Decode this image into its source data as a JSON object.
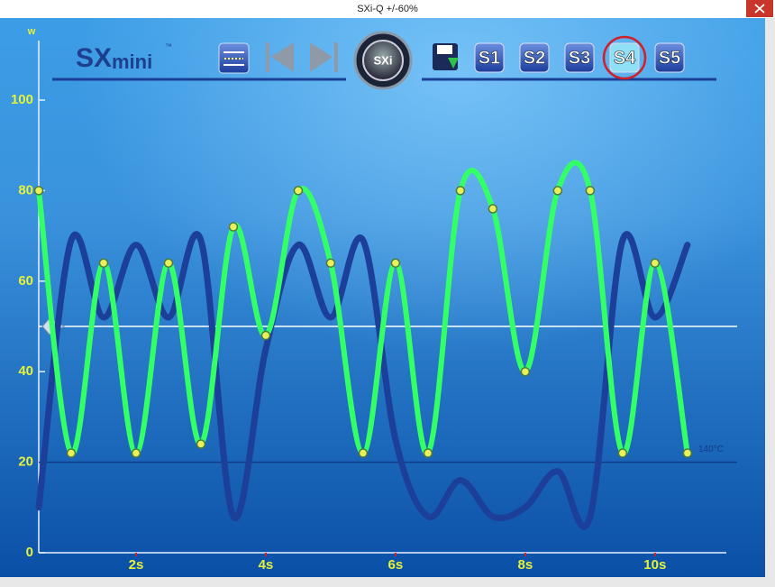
{
  "header": {
    "title": "SXi-Q  +/-60%"
  },
  "toolbar": {
    "brand": "SX",
    "brand_suffix": "mini",
    "trademark": "™",
    "center_badge": "SXi",
    "presets": [
      "S1",
      "S2",
      "S3",
      "S4",
      "S5"
    ],
    "active_preset": 3
  },
  "chart_data": {
    "type": "line",
    "y_label": "w",
    "x": [
      0.5,
      1,
      1.5,
      2,
      2.5,
      3,
      3.5,
      4,
      4.5,
      5,
      5.5,
      6,
      6.5,
      7,
      7.5,
      8,
      8.5,
      9,
      9.5,
      10,
      10.5
    ],
    "series": [
      {
        "color": "#1c3f9a",
        "markers": false,
        "values": [
          10,
          69,
          52,
          68,
          52,
          69,
          8,
          45,
          68,
          52,
          69,
          25,
          8,
          16,
          8,
          10,
          18,
          8,
          69,
          52,
          68
        ]
      },
      {
        "color": "#33ff66",
        "markers": true,
        "values": [
          80,
          22,
          64,
          22,
          64,
          24,
          72,
          48,
          80,
          64,
          22,
          64,
          22,
          80,
          76,
          40,
          80,
          80,
          22,
          64,
          22
        ]
      }
    ],
    "xlim": [
      0.5,
      11.1
    ],
    "ylim": [
      0,
      100
    ],
    "xticks": [
      {
        "value": 2,
        "label": "2s"
      },
      {
        "value": 4,
        "label": "4s"
      },
      {
        "value": 6,
        "label": "6s"
      },
      {
        "value": 8,
        "label": "8s"
      },
      {
        "value": 10,
        "label": "10s"
      }
    ],
    "yticks": [
      0,
      20,
      40,
      60,
      80,
      100
    ],
    "reference_lines": [
      {
        "value": 50,
        "color": "#ffffff"
      },
      {
        "value": 20,
        "color": "#123a8a",
        "label": "140°C"
      }
    ]
  }
}
